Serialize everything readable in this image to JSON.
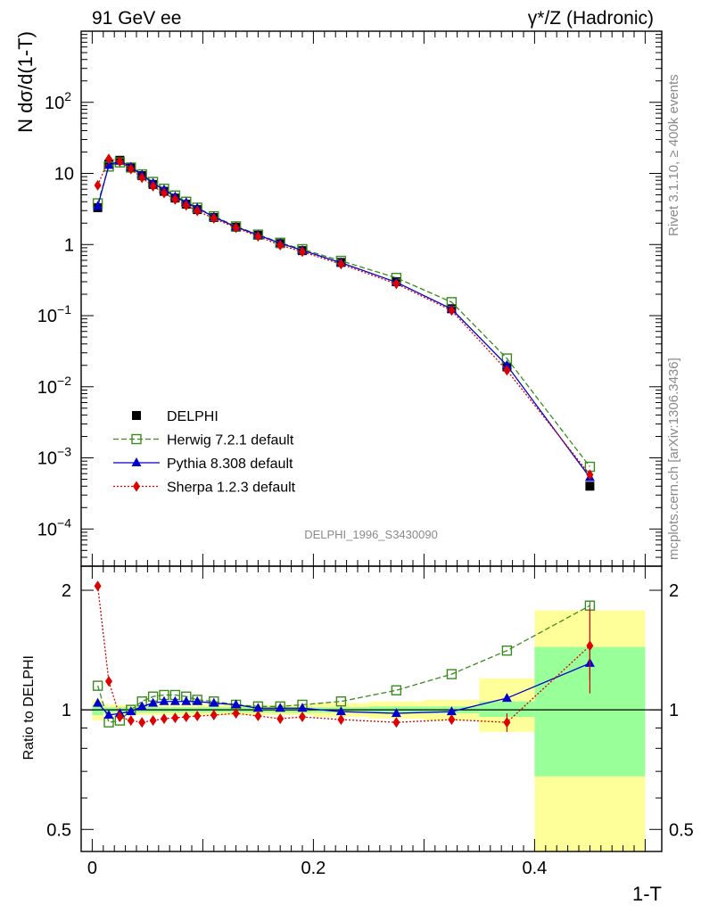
{
  "header": {
    "left_title": "91 GeV ee",
    "right_title": "γ*/Z (Hadronic)"
  },
  "side_labels": {
    "rivet": "Rivet 3.1.10, ≥ 400k events",
    "mcplots": "mcplots.cern.ch [arXiv:1306.3436]"
  },
  "watermark": "DELPHI_1996_S3430090",
  "chart_data": [
    {
      "type": "scatter",
      "title": "",
      "xlabel": "1-T",
      "ylabel": "N dσ/d(1-T)",
      "yscale": "log",
      "ylim": [
        3e-05,
        1000
      ],
      "xlim": [
        -0.01,
        0.515
      ],
      "y_tick_labels": [
        "10^-4",
        "10^-3",
        "10^-2",
        "10^-1",
        "1",
        "10",
        "10^2"
      ],
      "legend_position": "middle-left",
      "x": [
        0.005,
        0.015,
        0.025,
        0.035,
        0.045,
        0.055,
        0.065,
        0.075,
        0.085,
        0.095,
        0.11,
        0.13,
        0.15,
        0.17,
        0.19,
        0.225,
        0.275,
        0.325,
        0.375,
        0.45
      ],
      "series": [
        {
          "name": "DELPHI",
          "style": "data",
          "color": "#000000",
          "values": [
            3.3,
            13.5,
            15.3,
            12.2,
            9.3,
            7.0,
            5.6,
            4.5,
            3.7,
            3.1,
            2.4,
            1.75,
            1.35,
            1.03,
            0.82,
            0.56,
            0.3,
            0.125,
            0.019,
            0.0004
          ]
        },
        {
          "name": "Herwig 7.2.1 default",
          "style": "open-square",
          "color": "#3a8a1e",
          "values": [
            3.8,
            12.5,
            14.3,
            12.1,
            9.7,
            7.6,
            6.1,
            4.9,
            4.0,
            3.3,
            2.5,
            1.8,
            1.38,
            1.06,
            0.86,
            0.59,
            0.34,
            0.155,
            0.025,
            0.00075
          ]
        },
        {
          "name": "Pythia 8.308 default",
          "style": "triangle",
          "color": "#0000cc",
          "values": [
            3.45,
            13.0,
            15.0,
            12.3,
            9.5,
            7.3,
            5.9,
            4.7,
            3.9,
            3.25,
            2.45,
            1.77,
            1.36,
            1.04,
            0.83,
            0.555,
            0.295,
            0.124,
            0.02,
            0.00053
          ]
        },
        {
          "name": "Sherpa 1.2.3 default",
          "style": "diamond",
          "color": "#dd0000",
          "values": [
            6.8,
            16.0,
            14.7,
            11.5,
            8.7,
            6.6,
            5.3,
            4.3,
            3.55,
            2.97,
            2.33,
            1.72,
            1.3,
            0.98,
            0.79,
            0.53,
            0.28,
            0.118,
            0.017,
            0.00058
          ]
        }
      ]
    },
    {
      "type": "scatter",
      "title": "",
      "xlabel": "1-T",
      "ylabel": "Ratio to DELPHI",
      "yscale": "log",
      "ylim": [
        0.44,
        2.3
      ],
      "xlim": [
        -0.01,
        0.515
      ],
      "y_tick_labels": [
        "0.5",
        "1",
        "2"
      ],
      "x_tick_labels": [
        "0",
        "0.2",
        "0.4"
      ],
      "x": [
        0.005,
        0.015,
        0.025,
        0.035,
        0.045,
        0.055,
        0.065,
        0.075,
        0.085,
        0.095,
        0.11,
        0.13,
        0.15,
        0.17,
        0.19,
        0.225,
        0.275,
        0.325,
        0.375,
        0.45
      ],
      "bands": {
        "edges": [
          0,
          0.01,
          0.02,
          0.03,
          0.04,
          0.05,
          0.06,
          0.07,
          0.08,
          0.09,
          0.1,
          0.12,
          0.14,
          0.16,
          0.18,
          0.2,
          0.25,
          0.3,
          0.35,
          0.4,
          0.5
        ],
        "inner_low": [
          0.97,
          0.985,
          0.985,
          0.985,
          0.985,
          0.985,
          0.985,
          0.985,
          0.985,
          0.985,
          0.985,
          0.985,
          0.985,
          0.985,
          0.985,
          0.985,
          0.985,
          0.98,
          0.96,
          0.68
        ],
        "inner_high": [
          1.03,
          1.015,
          1.015,
          1.015,
          1.015,
          1.015,
          1.015,
          1.015,
          1.015,
          1.015,
          1.015,
          1.015,
          1.015,
          1.015,
          1.015,
          1.015,
          1.02,
          1.02,
          1.05,
          1.44
        ],
        "outer_low": [
          0.94,
          0.97,
          0.97,
          0.97,
          0.97,
          0.97,
          0.97,
          0.97,
          0.97,
          0.97,
          0.97,
          0.97,
          0.97,
          0.97,
          0.97,
          0.96,
          0.95,
          0.94,
          0.88,
          0.4
        ],
        "outer_high": [
          1.06,
          1.03,
          1.03,
          1.03,
          1.03,
          1.03,
          1.03,
          1.03,
          1.03,
          1.03,
          1.03,
          1.03,
          1.03,
          1.03,
          1.03,
          1.04,
          1.05,
          1.06,
          1.2,
          1.78
        ],
        "inner_color": "#99ff99",
        "outer_color": "#ffff99"
      },
      "series": [
        {
          "name": "Herwig 7.2.1 default",
          "style": "open-square",
          "color": "#3a8a1e",
          "values": [
            1.15,
            0.93,
            0.94,
            1.0,
            1.05,
            1.08,
            1.09,
            1.09,
            1.08,
            1.06,
            1.05,
            1.03,
            1.02,
            1.02,
            1.03,
            1.05,
            1.12,
            1.23,
            1.41,
            1.83
          ],
          "errors": [
            0,
            0,
            0,
            0,
            0,
            0,
            0,
            0,
            0,
            0,
            0,
            0,
            0,
            0,
            0,
            0,
            0,
            0,
            0,
            0.05
          ]
        },
        {
          "name": "Pythia 8.308 default",
          "style": "triangle",
          "color": "#0000cc",
          "values": [
            1.04,
            0.97,
            0.98,
            0.99,
            1.02,
            1.04,
            1.05,
            1.05,
            1.05,
            1.05,
            1.04,
            1.03,
            1.01,
            1.01,
            1.01,
            0.99,
            0.98,
            0.99,
            1.07,
            1.31
          ],
          "errors": [
            0,
            0,
            0,
            0,
            0,
            0,
            0,
            0,
            0,
            0,
            0,
            0,
            0,
            0,
            0,
            0,
            0,
            0,
            0,
            0.12
          ]
        },
        {
          "name": "Sherpa 1.2.3 default",
          "style": "diamond",
          "color": "#dd0000",
          "values": [
            2.05,
            1.18,
            0.96,
            0.94,
            0.93,
            0.94,
            0.95,
            0.955,
            0.96,
            0.965,
            0.97,
            0.98,
            0.965,
            0.95,
            0.96,
            0.945,
            0.93,
            0.945,
            0.93,
            1.45
          ],
          "errors": [
            0,
            0,
            0,
            0,
            0,
            0,
            0,
            0,
            0,
            0,
            0,
            0,
            0,
            0,
            0,
            0,
            0,
            0,
            0.05,
            0.35
          ]
        }
      ]
    }
  ]
}
